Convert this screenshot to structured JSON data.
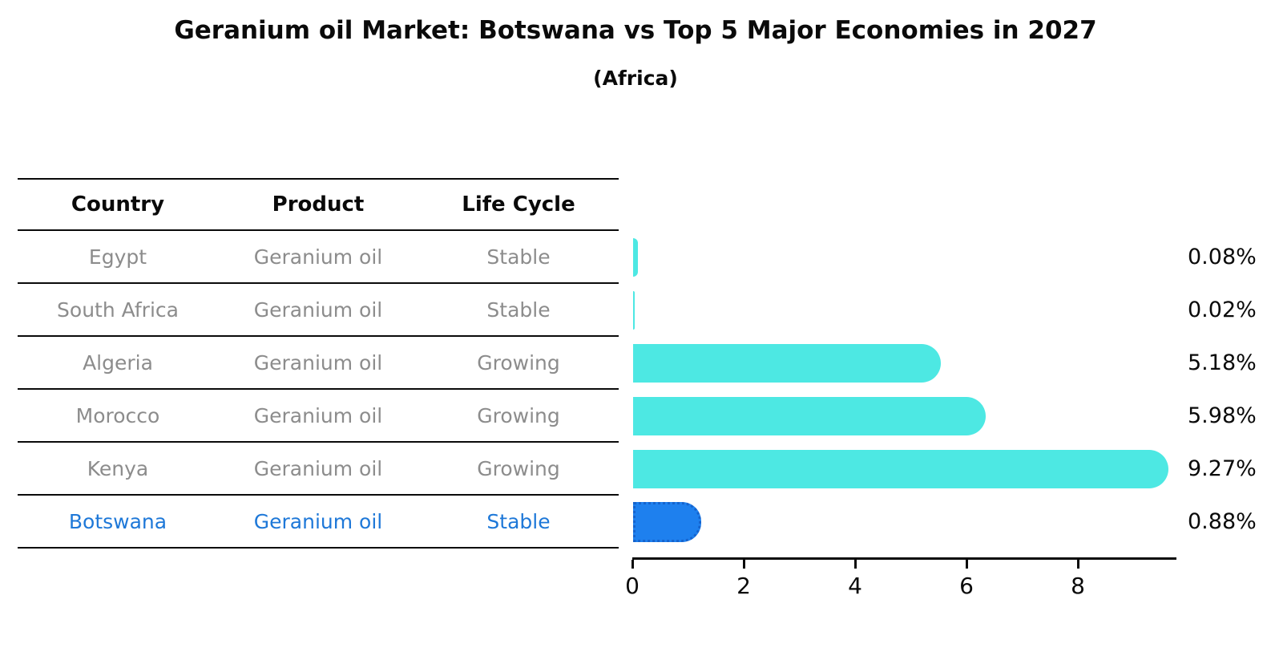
{
  "header": {
    "title": "Geranium oil Market: Botswana vs Top 5 Major Economies in 2027",
    "subtitle": "(Africa)"
  },
  "table": {
    "columns": [
      "Country",
      "Product",
      "Life Cycle"
    ],
    "rows": [
      {
        "country": "Egypt",
        "product": "Geranium oil",
        "life_cycle": "Stable",
        "highlight": false
      },
      {
        "country": "South Africa",
        "product": "Geranium oil",
        "life_cycle": "Stable",
        "highlight": false
      },
      {
        "country": "Algeria",
        "product": "Geranium oil",
        "life_cycle": "Growing",
        "highlight": false
      },
      {
        "country": "Morocco",
        "product": "Geranium oil",
        "life_cycle": "Growing",
        "highlight": false
      },
      {
        "country": "Kenya",
        "product": "Geranium oil",
        "life_cycle": "Growing",
        "highlight": false
      },
      {
        "country": "Botswana",
        "product": "Geranium oil",
        "life_cycle": "Stable",
        "highlight": true
      }
    ]
  },
  "chart_data": {
    "type": "bar",
    "orientation": "horizontal",
    "title": "Geranium oil Market: Botswana vs Top 5 Major Economies in 2027",
    "subtitle": "(Africa)",
    "categories": [
      "Egypt",
      "South Africa",
      "Algeria",
      "Morocco",
      "Kenya",
      "Botswana"
    ],
    "values": [
      0.08,
      0.02,
      5.18,
      5.98,
      9.27,
      0.88
    ],
    "value_labels": [
      "0.08%",
      "0.02%",
      "5.18%",
      "5.98%",
      "9.27%",
      "0.88%"
    ],
    "x_ticks": [
      0,
      2,
      4,
      6,
      8
    ],
    "xlim": [
      0,
      9.75
    ],
    "xlabel": "",
    "ylabel": "",
    "grid": false,
    "legend": false,
    "highlight_index": 5,
    "bar_color": "#4DE8E3",
    "highlight_color": "#1E80EE",
    "highlight_border_color": "#1563CD",
    "row_text_color": "#8C8C8C",
    "highlight_text_color": "#1E78D8"
  }
}
